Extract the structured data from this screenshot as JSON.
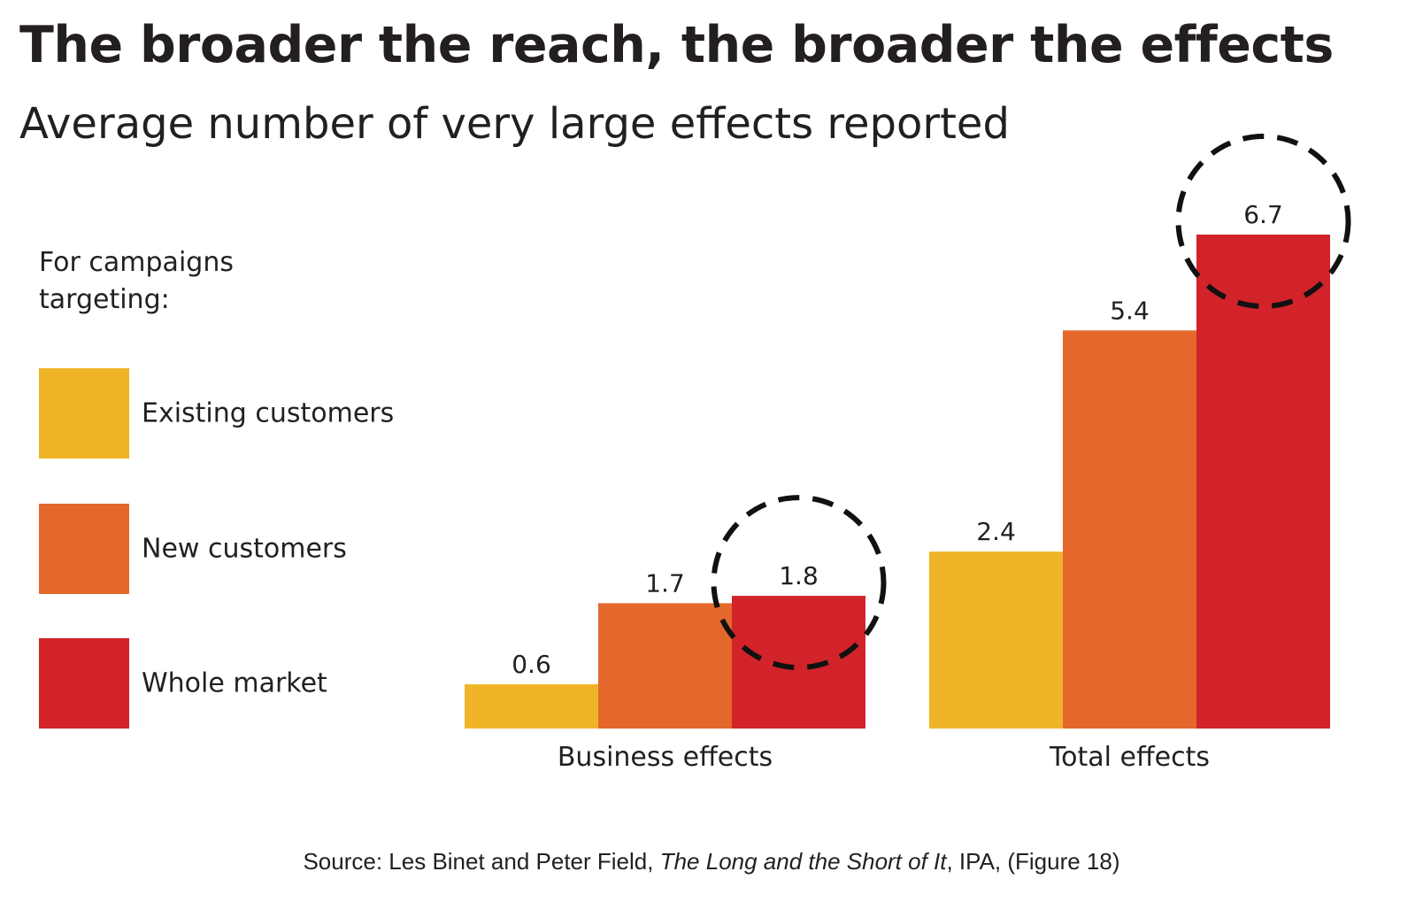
{
  "chart_data": {
    "type": "bar",
    "title": "The broader the reach, the broader the effects",
    "subtitle": "Average number of very large effects reported",
    "legend_heading": "For campaigns targeting:",
    "legend_placement": "left",
    "categories": [
      "Business effects",
      "Total effects"
    ],
    "series": [
      {
        "name": "Existing customers",
        "color": "#f0b429",
        "values": [
          0.6,
          2.4
        ]
      },
      {
        "name": "New customers",
        "color": "#e4682b",
        "values": [
          1.7,
          5.4
        ]
      },
      {
        "name": "Whole market",
        "color": "#d2232a",
        "values": [
          1.8,
          6.7
        ]
      }
    ],
    "data_labels": [
      [
        "0.6",
        "1.7",
        "1.8"
      ],
      [
        "2.4",
        "5.4",
        "6.7"
      ]
    ],
    "highlighted": [
      {
        "category": "Business effects",
        "series": "Whole market"
      },
      {
        "category": "Total effects",
        "series": "Whole market"
      }
    ],
    "grid": false,
    "xlabel": "",
    "ylabel": "",
    "ylim": [
      0,
      6.7
    ]
  },
  "source": {
    "prefix": "Source: Les Binet and Peter Field, ",
    "book": "The Long and the Short of It",
    "suffix": ", IPA, (Figure 18)"
  }
}
